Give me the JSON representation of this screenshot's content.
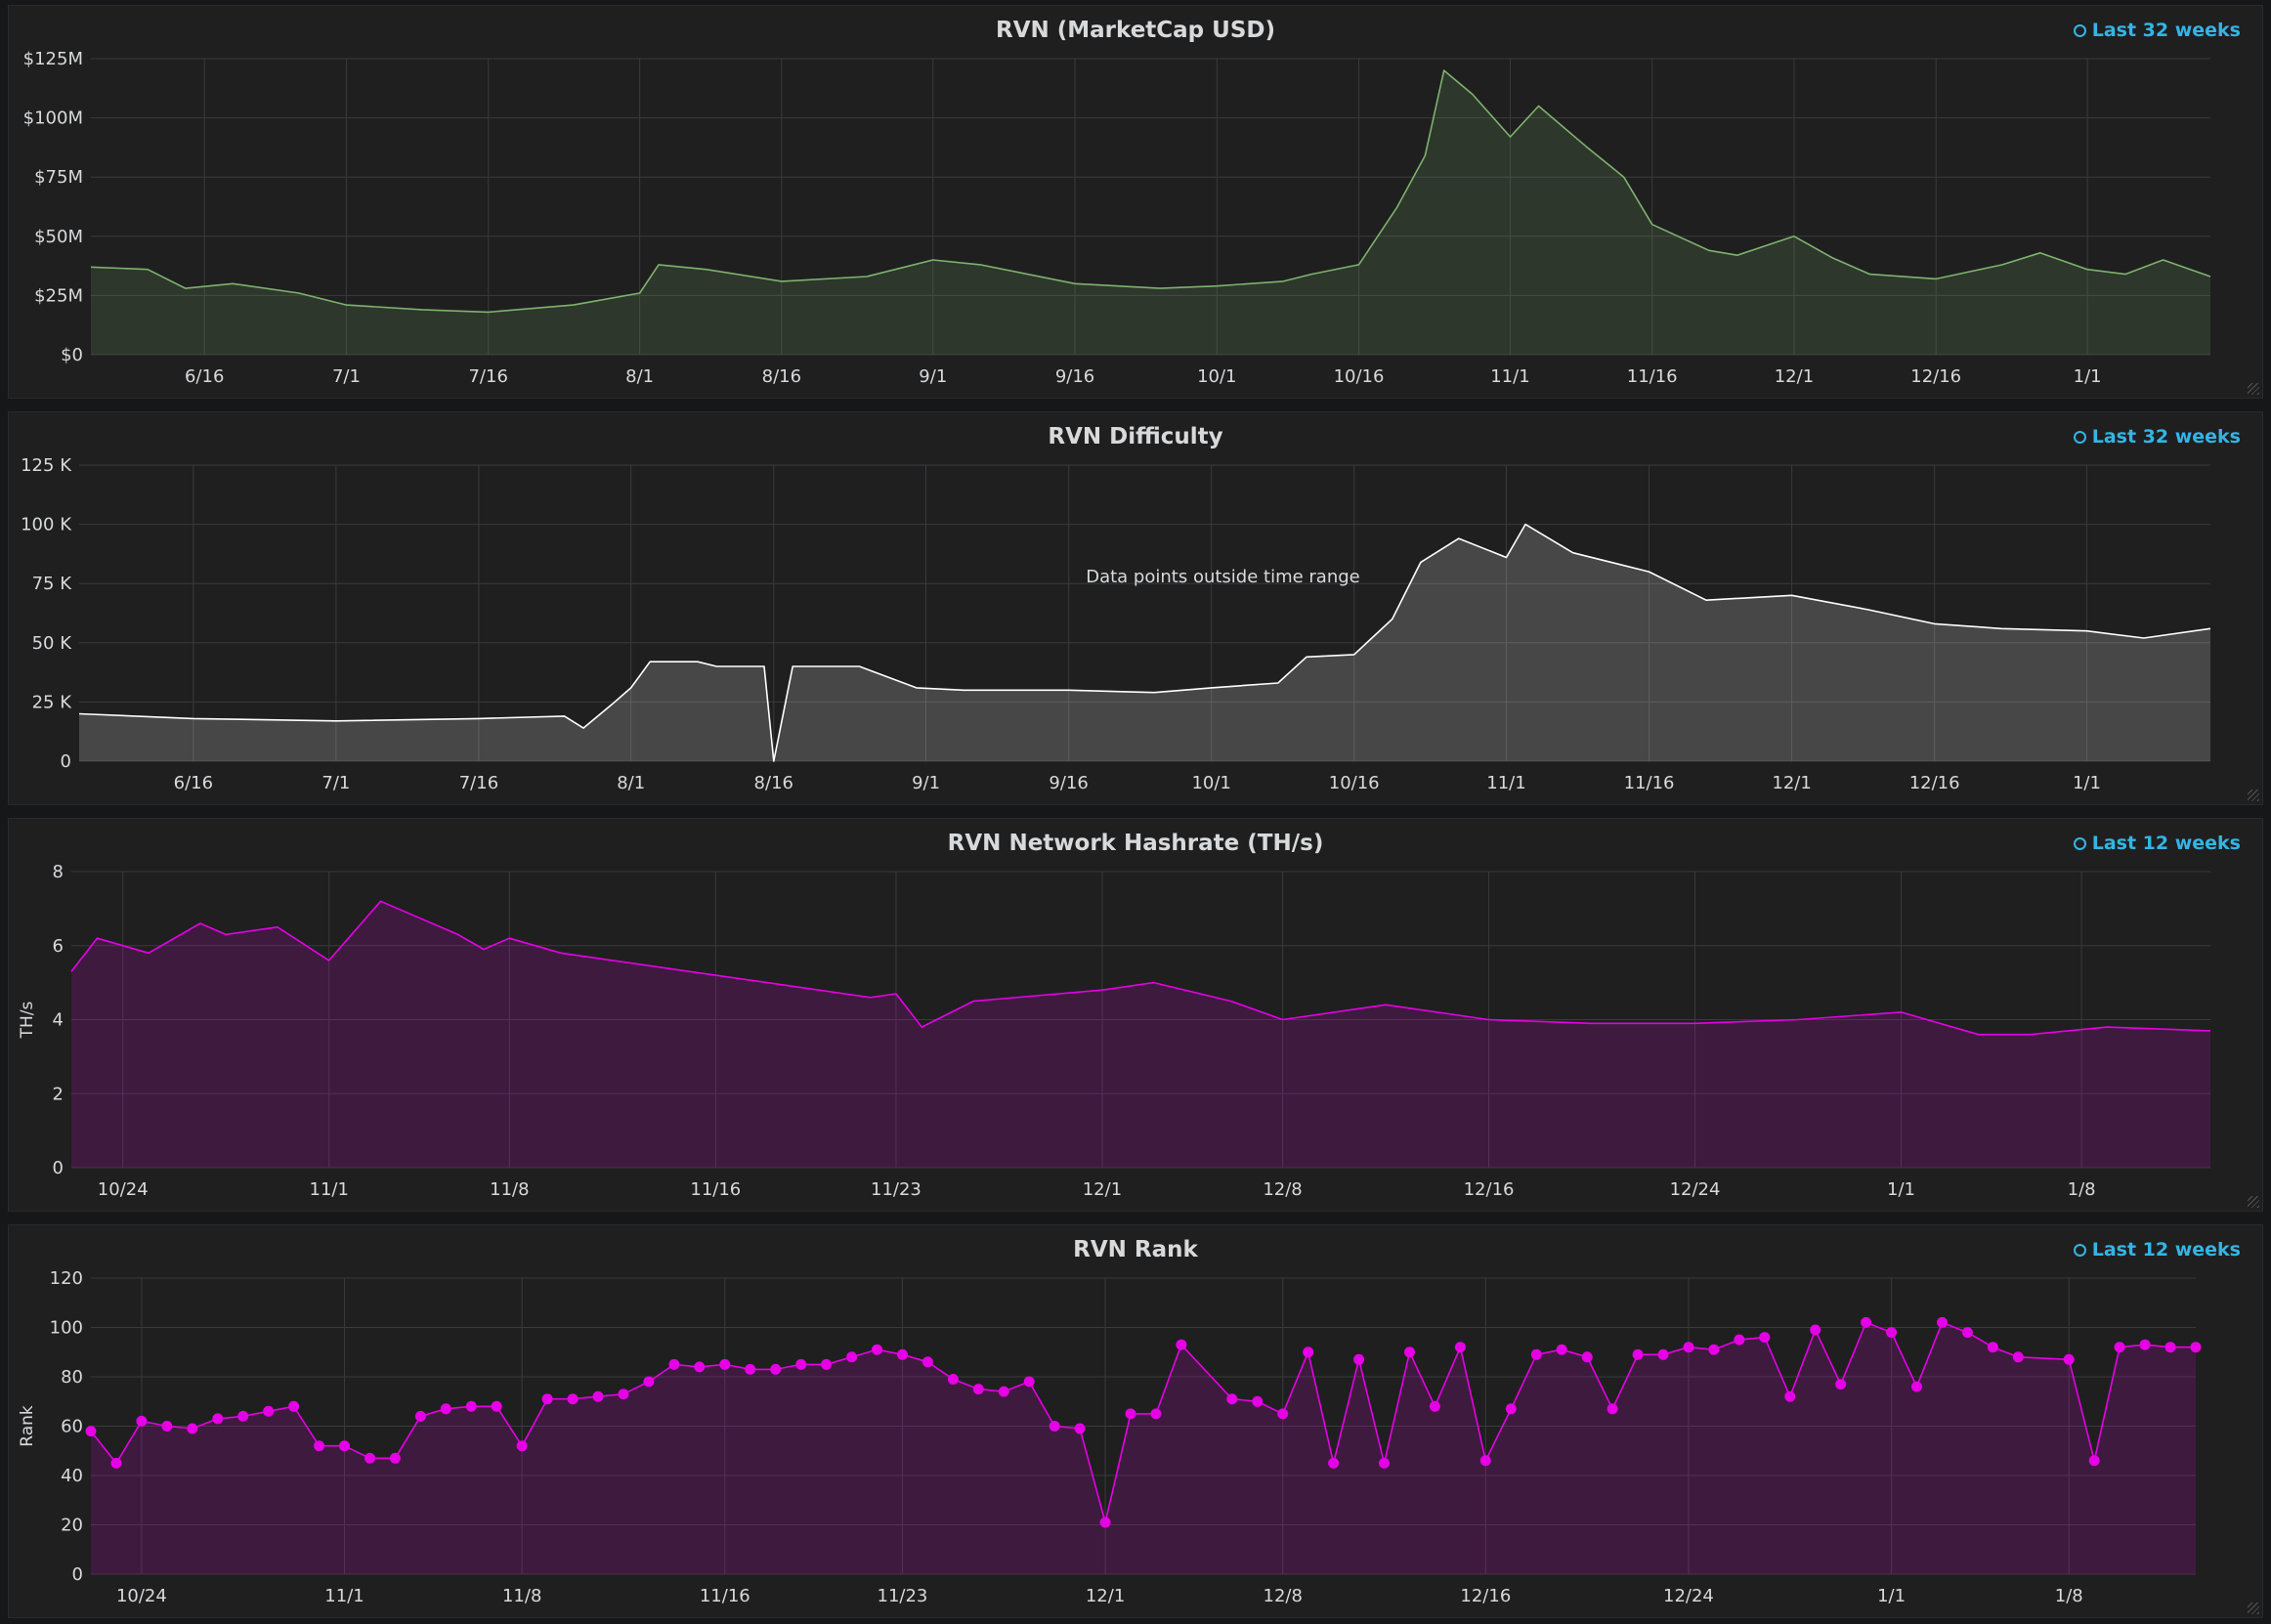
{
  "panels": [
    {
      "title": "RVN (MarketCap USD)",
      "time_range": "Last 32 weeks"
    },
    {
      "title": "RVN Difficulty",
      "time_range": "Last 32 weeks"
    },
    {
      "title": "RVN Network Hashrate (TH/s)",
      "time_range": "Last 12 weeks"
    },
    {
      "title": "RVN Rank",
      "time_range": "Last 12 weeks"
    }
  ],
  "chart_data": [
    {
      "type": "area",
      "title": "RVN (MarketCap USD)",
      "xlabel": "",
      "ylabel": "",
      "x_tick_labels": [
        "6/16",
        "7/1",
        "7/16",
        "8/1",
        "8/16",
        "9/1",
        "9/16",
        "10/1",
        "10/16",
        "11/1",
        "11/16",
        "12/1",
        "12/16",
        "1/1"
      ],
      "y_tick_labels": [
        "$0",
        "$25M",
        "$50M",
        "$75M",
        "$100M",
        "$125M"
      ],
      "ylim": [
        0,
        125
      ],
      "y_unit": "$M",
      "xlim": [
        "6/4",
        "1/14"
      ],
      "color": "#7eb26d",
      "series": [
        {
          "x": [
            "6/4",
            "6/10",
            "6/14",
            "6/19",
            "6/26",
            "7/1",
            "7/9",
            "7/16",
            "7/25",
            "8/1",
            "8/3",
            "8/8",
            "8/16",
            "8/25",
            "9/1",
            "9/6",
            "9/16",
            "9/25",
            "10/1",
            "10/8",
            "10/11",
            "10/16",
            "10/20",
            "10/23",
            "10/25",
            "10/28",
            "11/1",
            "11/4",
            "11/9",
            "11/13",
            "11/16",
            "11/22",
            "11/25",
            "12/1",
            "12/5",
            "12/9",
            "12/16",
            "12/23",
            "12/27",
            "1/1",
            "1/5",
            "1/9",
            "1/14"
          ],
          "values": [
            37,
            36,
            28,
            30,
            26,
            21,
            19,
            18,
            21,
            26,
            38,
            36,
            31,
            33,
            40,
            38,
            30,
            28,
            29,
            31,
            34,
            38,
            62,
            84,
            120,
            110,
            92,
            105,
            88,
            75,
            55,
            44,
            42,
            50,
            41,
            34,
            32,
            38,
            43,
            36,
            34,
            40,
            33
          ]
        }
      ]
    },
    {
      "type": "area",
      "title": "RVN Difficulty",
      "xlabel": "",
      "ylabel": "",
      "x_tick_labels": [
        "6/16",
        "7/1",
        "7/16",
        "8/1",
        "8/16",
        "9/1",
        "9/16",
        "10/1",
        "10/16",
        "11/1",
        "11/16",
        "12/1",
        "12/16",
        "1/1"
      ],
      "y_tick_labels": [
        "0",
        "25 K",
        "50 K",
        "75 K",
        "100 K",
        "125 K"
      ],
      "ylim": [
        0,
        125
      ],
      "y_unit": "K",
      "xlim": [
        "6/4",
        "1/14"
      ],
      "annotation": "Data points outside time range",
      "color": "#ffffff",
      "series": [
        {
          "x": [
            "6/4",
            "6/16",
            "7/1",
            "7/16",
            "7/25",
            "7/27",
            "7/30",
            "8/1",
            "8/3",
            "8/8",
            "8/10",
            "8/15",
            "8/16",
            "8/18",
            "8/25",
            "8/31",
            "9/5",
            "9/16",
            "9/25",
            "10/1",
            "10/8",
            "10/11",
            "10/16",
            "10/20",
            "10/23",
            "10/27",
            "11/1",
            "11/3",
            "11/8",
            "11/16",
            "11/22",
            "12/1",
            "12/9",
            "12/16",
            "12/23",
            "1/1",
            "1/7",
            "1/14"
          ],
          "values": [
            20,
            18,
            17,
            18,
            19,
            14,
            24,
            31,
            42,
            42,
            40,
            40,
            0,
            40,
            40,
            31,
            30,
            30,
            29,
            31,
            33,
            44,
            45,
            60,
            84,
            94,
            86,
            100,
            88,
            80,
            68,
            70,
            64,
            58,
            56,
            55,
            52,
            56
          ]
        }
      ]
    },
    {
      "type": "area",
      "title": "RVN Network Hashrate (TH/s)",
      "xlabel": "",
      "ylabel": "TH/s",
      "x_tick_labels": [
        "10/24",
        "11/1",
        "11/8",
        "11/16",
        "11/23",
        "12/1",
        "12/8",
        "12/16",
        "12/24",
        "1/1",
        "1/8"
      ],
      "y_tick_labels": [
        "0",
        "2",
        "4",
        "6",
        "8"
      ],
      "ylim": [
        0,
        8
      ],
      "xlim": [
        "10/22",
        "1/13"
      ],
      "color": "#e600e6",
      "series": [
        {
          "x": [
            "10/22",
            "10/23",
            "10/25",
            "10/27",
            "10/28",
            "10/30",
            "11/1",
            "11/3",
            "11/4",
            "11/6",
            "11/7",
            "11/8",
            "11/10",
            "11/12",
            "11/15",
            "11/18",
            "11/22",
            "11/23",
            "11/24",
            "11/26",
            "12/1",
            "12/3",
            "12/6",
            "12/8",
            "12/12",
            "12/16",
            "12/20",
            "12/24",
            "12/28",
            "1/1",
            "1/4",
            "1/6",
            "1/9",
            "1/13"
          ],
          "values": [
            5.3,
            6.2,
            5.8,
            6.6,
            6.3,
            6.5,
            5.6,
            7.2,
            6.9,
            6.3,
            5.9,
            6.2,
            5.8,
            5.6,
            5.3,
            5.0,
            4.6,
            4.7,
            3.8,
            4.5,
            4.8,
            5.0,
            4.5,
            4.0,
            4.4,
            4.0,
            3.9,
            3.9,
            4.0,
            4.2,
            3.6,
            3.6,
            3.8,
            3.7
          ]
        }
      ]
    },
    {
      "type": "line",
      "title": "RVN Rank",
      "xlabel": "",
      "ylabel": "Rank",
      "x_tick_labels": [
        "10/24",
        "11/1",
        "11/8",
        "11/16",
        "11/23",
        "12/1",
        "12/8",
        "12/16",
        "12/24",
        "1/1",
        "1/8"
      ],
      "y_tick_labels": [
        "0",
        "20",
        "40",
        "60",
        "80",
        "100",
        "120"
      ],
      "ylim": [
        0,
        120
      ],
      "xlim": [
        "10/22",
        "1/13"
      ],
      "color": "#e600e6",
      "series": [
        {
          "x": [
            "10/22",
            "10/23",
            "10/24",
            "10/25",
            "10/26",
            "10/27",
            "10/28",
            "10/29",
            "10/30",
            "10/31",
            "11/1",
            "11/2",
            "11/3",
            "11/4",
            "11/5",
            "11/6",
            "11/7",
            "11/8",
            "11/9",
            "11/10",
            "11/11",
            "11/12",
            "11/13",
            "11/14",
            "11/15",
            "11/16",
            "11/17",
            "11/18",
            "11/19",
            "11/20",
            "11/21",
            "11/22",
            "11/23",
            "11/24",
            "11/25",
            "11/26",
            "11/27",
            "11/28",
            "11/29",
            "11/30",
            "12/1",
            "12/2",
            "12/3",
            "12/4",
            "12/6",
            "12/7",
            "12/8",
            "12/9",
            "12/10",
            "12/11",
            "12/12",
            "12/13",
            "12/14",
            "12/15",
            "12/16",
            "12/17",
            "12/18",
            "12/19",
            "12/20",
            "12/21",
            "12/22",
            "12/23",
            "12/24",
            "12/25",
            "12/26",
            "12/27",
            "12/28",
            "12/29",
            "12/30",
            "12/31",
            "1/1",
            "1/2",
            "1/3",
            "1/4",
            "1/5",
            "1/6",
            "1/8",
            "1/9",
            "1/10",
            "1/11",
            "1/12",
            "1/13"
          ],
          "values": [
            58,
            45,
            62,
            60,
            59,
            63,
            64,
            66,
            68,
            52,
            52,
            47,
            47,
            64,
            67,
            68,
            68,
            52,
            71,
            71,
            72,
            73,
            78,
            85,
            84,
            85,
            83,
            83,
            85,
            85,
            88,
            91,
            89,
            86,
            79,
            75,
            74,
            78,
            60,
            59,
            21,
            65,
            65,
            93,
            71,
            70,
            65,
            90,
            45,
            87,
            45,
            90,
            68,
            92,
            46,
            67,
            89,
            91,
            88,
            67,
            89,
            89,
            92,
            91,
            95,
            96,
            72,
            99,
            77,
            102,
            98,
            76,
            102,
            98,
            92,
            88,
            87,
            46,
            92,
            93,
            92,
            92
          ]
        }
      ]
    }
  ]
}
